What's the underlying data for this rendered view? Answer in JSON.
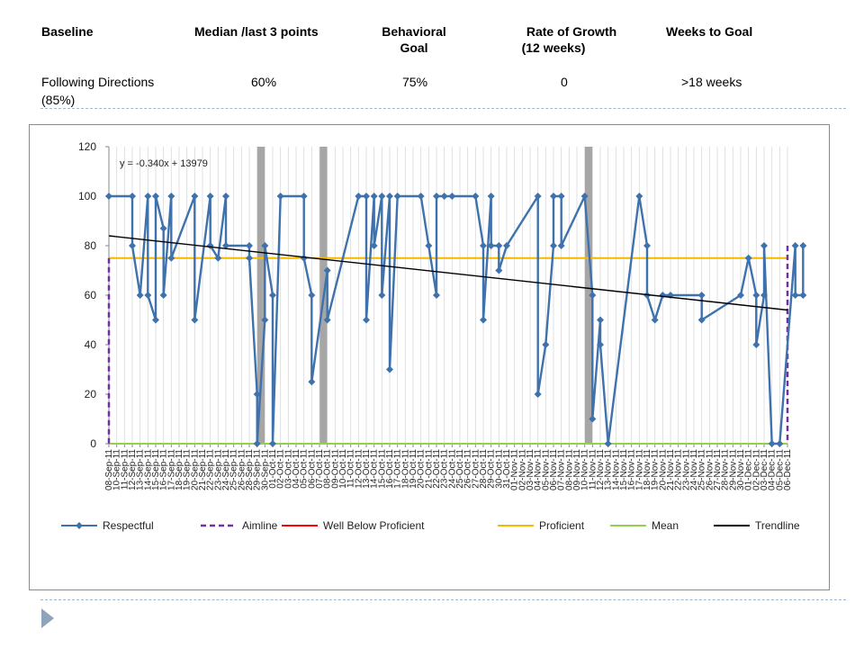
{
  "header": {
    "col1": "Baseline",
    "col2": "Median /last 3 points",
    "col3_line1": "Behavioral",
    "col3_line2": "Goal",
    "col4_line1": "Rate of Growth",
    "col4_line2": "(12 weeks)",
    "col5": "Weeks to Goal"
  },
  "row": {
    "baseline_line1": "Following Directions",
    "baseline_line2": "(85%)",
    "median": "60%",
    "goal": "75%",
    "rate": "0",
    "weeks": ">18 weeks"
  },
  "chart_data": {
    "type": "line",
    "ylim": [
      0,
      120
    ],
    "yticks": [
      0,
      20,
      40,
      60,
      80,
      100,
      120
    ],
    "x_tick_labels": [
      "08-Sep-11",
      "10-Sep-11",
      "11-Sep-11",
      "12-Sep-11",
      "13-Sep-11",
      "14-Sep-11",
      "15-Sep-11",
      "16-Sep-11",
      "17-Sep-11",
      "18-Sep-11",
      "19-Sep-11",
      "20-Sep-11",
      "21-Sep-11",
      "22-Sep-11",
      "23-Sep-11",
      "24-Sep-11",
      "25-Sep-11",
      "26-Sep-11",
      "28-Sep-11",
      "29-Sep-11",
      "30-Sep-11",
      "01-Oct-11",
      "02-Oct-11",
      "03-Oct-11",
      "04-Oct-11",
      "05-Oct-11",
      "06-Oct-11",
      "07-Oct-11",
      "08-Oct-11",
      "09-Oct-11",
      "10-Oct-11",
      "11-Oct-11",
      "12-Oct-11",
      "13-Oct-11",
      "14-Oct-11",
      "15-Oct-11",
      "16-Oct-11",
      "17-Oct-11",
      "18-Oct-11",
      "19-Oct-11",
      "20-Oct-11",
      "21-Oct-11",
      "22-Oct-11",
      "23-Oct-11",
      "24-Oct-11",
      "25-Oct-11",
      "26-Oct-11",
      "27-Oct-11",
      "28-Oct-11",
      "29-Oct-11",
      "30-Oct-11",
      "31-Oct-11",
      "01-Nov-11",
      "02-Nov-11",
      "03-Nov-11",
      "04-Nov-11",
      "05-Nov-11",
      "06-Nov-11",
      "07-Nov-11",
      "08-Nov-11",
      "09-Nov-11",
      "10-Nov-11",
      "11-Nov-11",
      "12-Nov-11",
      "13-Nov-11",
      "14-Nov-11",
      "15-Nov-11",
      "16-Nov-11",
      "17-Nov-11",
      "18-Nov-11",
      "19-Nov-11",
      "20-Nov-11",
      "21-Nov-11",
      "22-Nov-11",
      "23-Nov-11",
      "24-Nov-11",
      "25-Nov-11",
      "26-Nov-11",
      "27-Nov-11",
      "28-Nov-11",
      "29-Nov-11",
      "30-Nov-11",
      "01-Dec-11",
      "02-Dec-11",
      "03-Dec-11",
      "04-Dec-11",
      "05-Dec-11",
      "06-Dec-11"
    ],
    "vertical_bars_at_index": [
      19.5,
      27.5,
      61.5
    ],
    "series": [
      {
        "name": "Respectful",
        "color": "#3f72ad",
        "marker": "diamond",
        "points": [
          [
            0,
            100
          ],
          [
            3,
            100
          ],
          [
            3,
            80
          ],
          [
            4,
            60
          ],
          [
            5,
            100
          ],
          [
            5,
            60
          ],
          [
            6,
            50
          ],
          [
            6,
            100
          ],
          [
            7,
            87
          ],
          [
            7,
            60
          ],
          [
            8,
            100
          ],
          [
            8,
            75
          ],
          [
            11,
            100
          ],
          [
            11,
            50
          ],
          [
            13,
            100
          ],
          [
            13,
            80
          ],
          [
            14,
            75
          ],
          [
            15,
            100
          ],
          [
            15,
            80
          ],
          [
            18,
            80
          ],
          [
            18,
            75
          ],
          [
            19,
            20
          ],
          [
            19,
            0
          ],
          [
            20,
            50
          ],
          [
            20,
            80
          ],
          [
            21,
            60
          ],
          [
            21,
            0
          ],
          [
            22,
            100
          ],
          [
            25,
            100
          ],
          [
            25,
            75
          ],
          [
            26,
            60
          ],
          [
            26,
            25
          ],
          [
            28,
            70
          ],
          [
            28,
            50
          ],
          [
            32,
            100
          ],
          [
            33,
            100
          ],
          [
            33,
            50
          ],
          [
            34,
            100
          ],
          [
            34,
            80
          ],
          [
            35,
            100
          ],
          [
            35,
            60
          ],
          [
            36,
            100
          ],
          [
            36,
            30
          ],
          [
            37,
            100
          ],
          [
            40,
            100
          ],
          [
            41,
            80
          ],
          [
            42,
            60
          ],
          [
            42,
            100
          ],
          [
            43,
            100
          ],
          [
            44,
            100
          ],
          [
            47,
            100
          ],
          [
            48,
            80
          ],
          [
            48,
            50
          ],
          [
            49,
            100
          ],
          [
            49,
            80
          ],
          [
            50,
            80
          ],
          [
            50,
            70
          ],
          [
            51,
            80
          ],
          [
            55,
            100
          ],
          [
            55,
            20
          ],
          [
            56,
            40
          ],
          [
            57,
            80
          ],
          [
            57,
            100
          ],
          [
            58,
            100
          ],
          [
            58,
            80
          ],
          [
            61,
            100
          ],
          [
            62,
            60
          ],
          [
            62,
            10
          ],
          [
            63,
            50
          ],
          [
            63,
            40
          ],
          [
            64,
            0
          ],
          [
            68,
            100
          ],
          [
            69,
            80
          ],
          [
            69,
            60
          ],
          [
            70,
            50
          ],
          [
            71,
            60
          ],
          [
            72,
            60
          ],
          [
            76,
            60
          ],
          [
            76,
            50
          ],
          [
            81,
            60
          ],
          [
            82,
            75
          ],
          [
            83,
            60
          ],
          [
            83,
            40
          ],
          [
            84,
            60
          ],
          [
            84,
            80
          ],
          [
            85,
            0
          ],
          [
            86,
            0
          ],
          [
            88,
            80
          ],
          [
            88,
            60
          ],
          [
            89,
            60
          ],
          [
            89,
            80
          ]
        ]
      },
      {
        "name": "Aimline",
        "color": "#7030a0",
        "dash": true,
        "value": 0,
        "ends_at": 75
      },
      {
        "name": "Well Below Proficient",
        "color": "#ff0000"
      },
      {
        "name": "Proficient",
        "color": "#f4b800",
        "value": 75
      },
      {
        "name": "Mean",
        "color": "#92d050",
        "value": 0
      },
      {
        "name": "Trendline",
        "color": "#000000",
        "y_start": 84,
        "y_end": 54
      }
    ],
    "annotation": "y = -0.340x + 13979",
    "legend_position": "bottom"
  }
}
